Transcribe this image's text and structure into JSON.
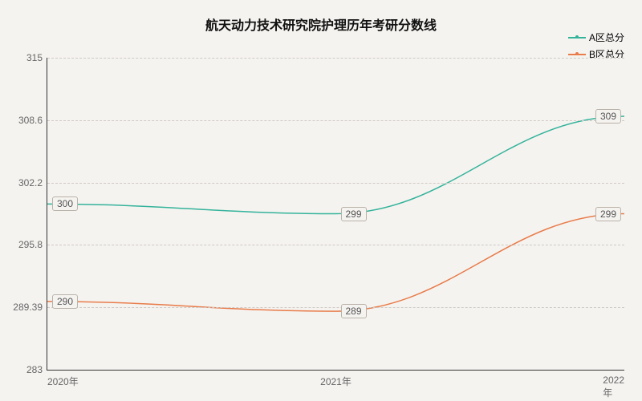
{
  "chart": {
    "type": "line",
    "title": "航天动力技术研究院护理历年考研分数线",
    "title_fontsize": 16,
    "background_color": "#f5f3f0",
    "axis_color": "#333333",
    "grid_color": "#cfcac4",
    "tick_label_color": "#666666",
    "tick_fontsize": 12,
    "x": {
      "categories": [
        "2020年",
        "2021年",
        "2022年"
      ]
    },
    "y": {
      "min": 283,
      "max": 315,
      "ticks": [
        283,
        289.39,
        295.8,
        302.2,
        308.6,
        315
      ]
    },
    "series": [
      {
        "name": "A区总分",
        "color": "#33b39a",
        "values": [
          300,
          299,
          309
        ],
        "line_width": 1.5,
        "label_offset": "right"
      },
      {
        "name": "B区总分",
        "color": "#e87c4a",
        "values": [
          290,
          289,
          299
        ],
        "line_width": 1.5,
        "label_offset": "right"
      }
    ],
    "legend": {
      "position": "top-right",
      "fontsize": 12
    }
  }
}
